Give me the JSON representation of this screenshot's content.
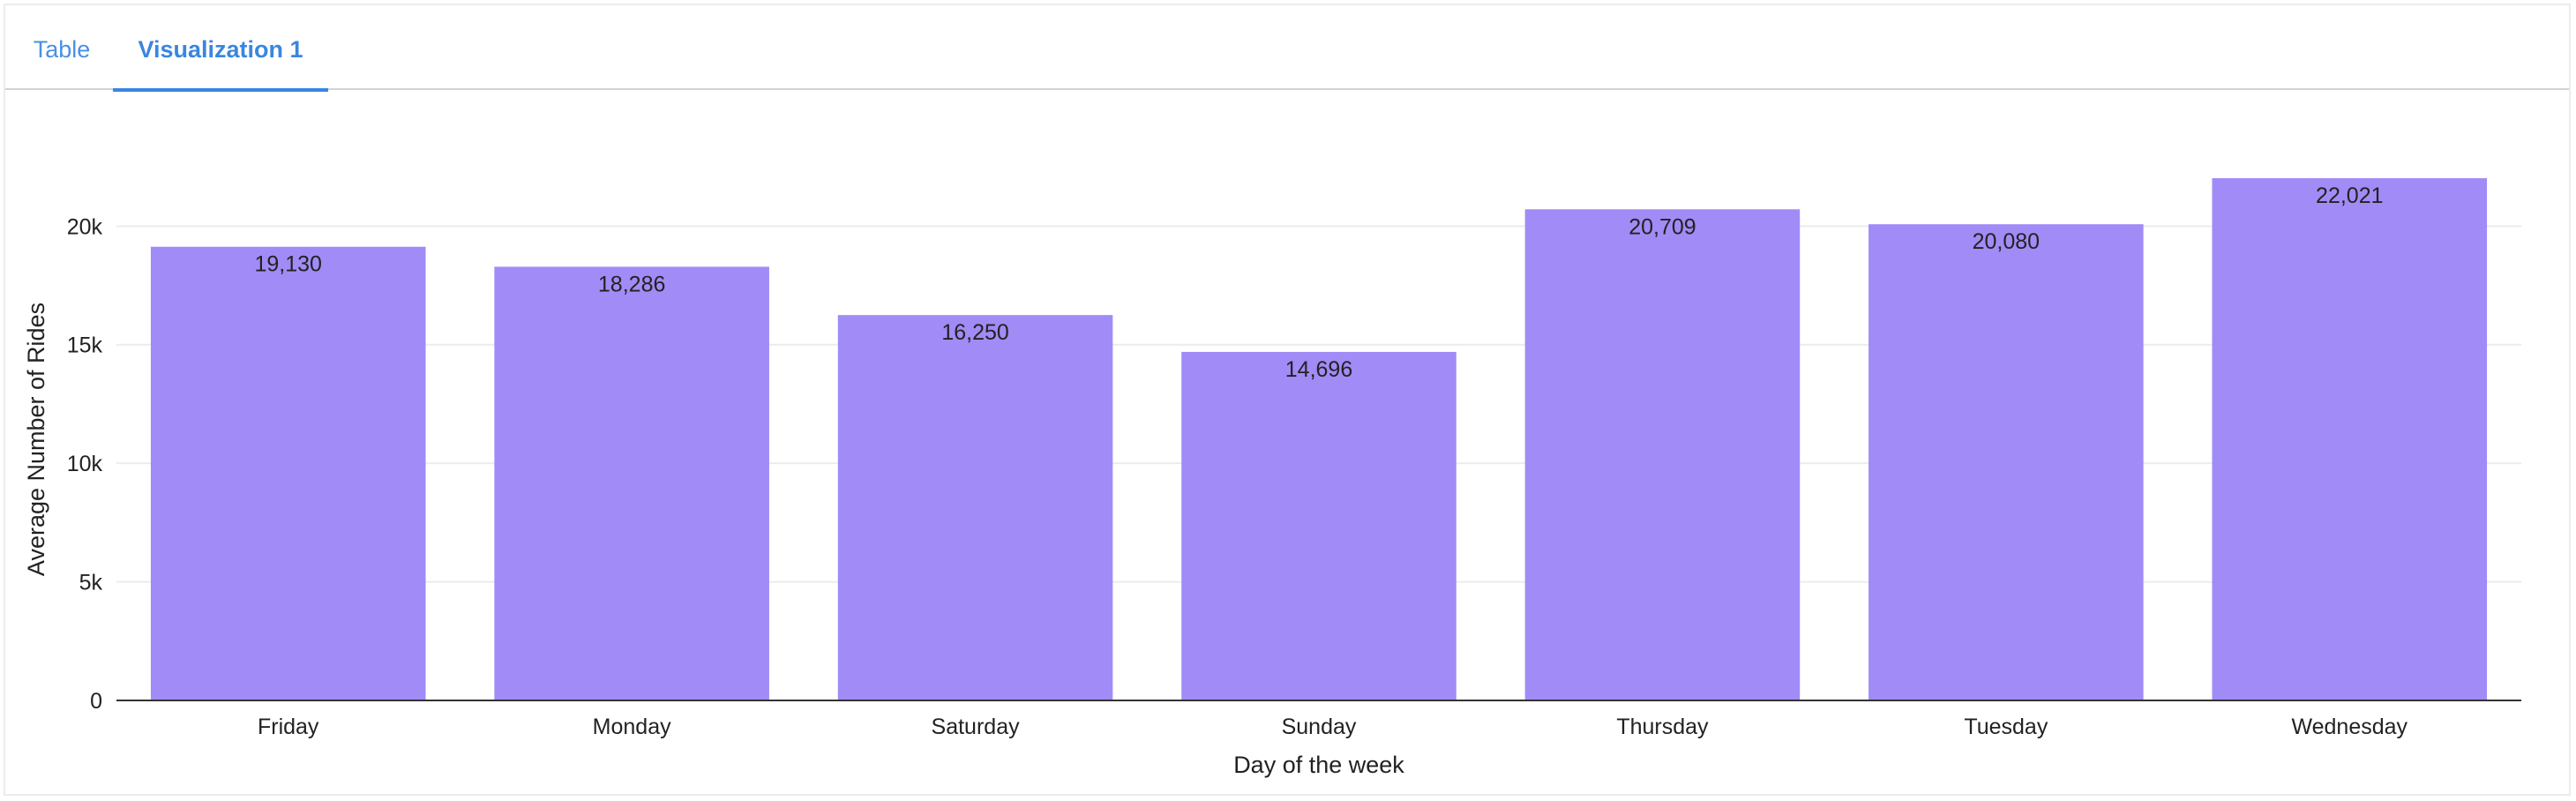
{
  "tabs": [
    {
      "label": "Table"
    },
    {
      "label": "Visualization 1"
    }
  ],
  "colors": {
    "bar": "#a18bf6",
    "grid": "#ececec",
    "axis": "#333333",
    "text": "#222222",
    "tab_active": "#3a86e0",
    "tab_inactive": "#4a90e2"
  },
  "chart_data": {
    "type": "bar",
    "title": "",
    "xlabel": "Day of the week",
    "ylabel": "Average Number of Rides",
    "categories": [
      "Friday",
      "Monday",
      "Saturday",
      "Sunday",
      "Thursday",
      "Tuesday",
      "Wednesday"
    ],
    "values": [
      19130,
      18286,
      16250,
      14696,
      20709,
      20080,
      22021
    ],
    "data_labels": [
      "19,130",
      "18,286",
      "16,250",
      "14,696",
      "20,709",
      "20,080",
      "22,021"
    ],
    "ylim": [
      0,
      22021
    ],
    "yticks": [
      0,
      5000,
      10000,
      15000,
      20000
    ],
    "ytick_labels": [
      "0",
      "5k",
      "10k",
      "15k",
      "20k"
    ],
    "grid": true,
    "legend": "none"
  }
}
